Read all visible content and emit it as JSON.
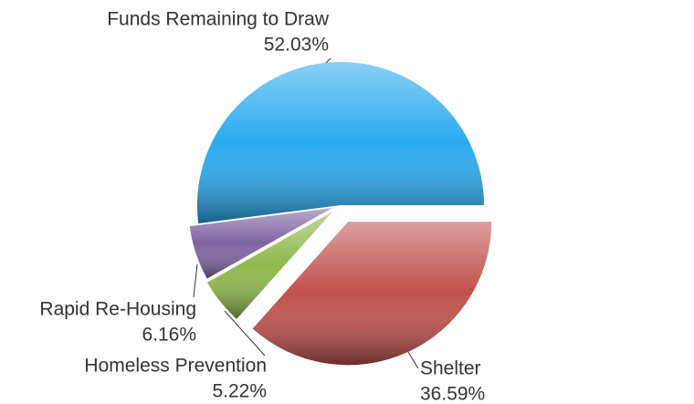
{
  "chart_data": {
    "type": "pie",
    "categories": [
      "Funds Remaining to Draw",
      "Rapid Re-Housing",
      "Homeless Prevention",
      "Shelter"
    ],
    "values": [
      52.03,
      6.16,
      5.22,
      36.59
    ],
    "value_labels": [
      "52.03%",
      "6.16%",
      "5.22%",
      "36.59%"
    ],
    "colors": [
      "#29aaf0",
      "#8064a2",
      "#8fb84c",
      "#c0504d"
    ]
  }
}
